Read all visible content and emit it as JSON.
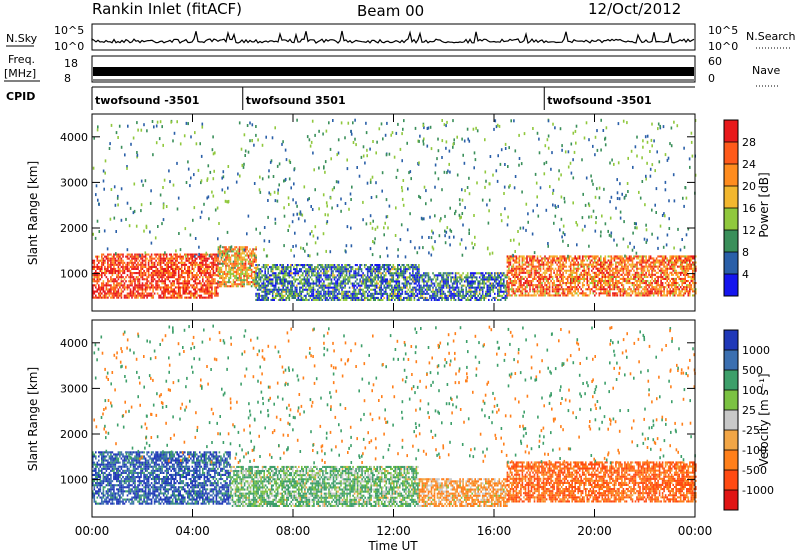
{
  "header": {
    "title": "Rankin Inlet (fitACF)",
    "beam": "Beam 00",
    "date": "12/Oct/2012"
  },
  "strips": {
    "nsky_label": "N.Sky",
    "nsky_ticks": [
      "10^5",
      "10^0"
    ],
    "nsearch_label": "N.Search",
    "nsearch_ticks": [
      "10^5",
      "10^0"
    ],
    "freq_label_line1": "Freq.",
    "freq_label_line2": "[MHz]",
    "freq_ticks": [
      "18",
      "8"
    ],
    "nave_label": "Nave",
    "nave_ticks": [
      "60",
      "0"
    ],
    "cpid_label": "CPID",
    "cpid_segments": [
      {
        "start_hour": 0,
        "label": "twofsound -3501"
      },
      {
        "start_hour": 6,
        "label": "twofsound 3501"
      },
      {
        "start_hour": 18,
        "label": "twofsound -3501"
      }
    ]
  },
  "chart_data": [
    {
      "type": "heatmap",
      "name": "power",
      "ylabel": "Slant Range [km]",
      "ylim": [
        180,
        4500
      ],
      "yticks": [
        "1000",
        "2000",
        "3000",
        "4000"
      ],
      "xlim_hours": [
        0,
        24
      ],
      "colorbar_label": "Power [dB]",
      "colorbar_ticks": [
        "28",
        "24",
        "20",
        "16",
        "12",
        "8",
        "4"
      ],
      "colorbar_colors": [
        "#e8191b",
        "#ff5a1a",
        "#ff8c1e",
        "#f2b72f",
        "#90c83d",
        "#3a8f5a",
        "#2a5fa8",
        "#1515ee"
      ],
      "range_bands": [
        {
          "from_hour": 0.0,
          "to_hour": 5.0,
          "range_min_km": 450,
          "range_max_km": 1400,
          "dominant_db": 28
        },
        {
          "from_hour": 5.0,
          "to_hour": 6.5,
          "range_min_km": 700,
          "range_max_km": 1600,
          "dominant_db": 20
        },
        {
          "from_hour": 6.5,
          "to_hour": 13.0,
          "range_min_km": 400,
          "range_max_km": 1200,
          "dominant_db": 8
        },
        {
          "from_hour": 13.0,
          "to_hour": 16.5,
          "range_min_km": 400,
          "range_max_km": 1000,
          "dominant_db": 8
        },
        {
          "from_hour": 16.5,
          "to_hour": 24.0,
          "range_min_km": 500,
          "range_max_km": 1400,
          "dominant_db": 24
        }
      ]
    },
    {
      "type": "heatmap",
      "name": "velocity",
      "ylabel": "Slant Range [km]",
      "xlabel": "Time UT",
      "ylim": [
        180,
        4500
      ],
      "yticks": [
        "1000",
        "2000",
        "3000",
        "4000"
      ],
      "xticks": [
        "00:00",
        "04:00",
        "08:00",
        "12:00",
        "16:00",
        "20:00",
        "00:00"
      ],
      "xlim_hours": [
        0,
        24
      ],
      "colorbar_label": "Velocity [m s⁻¹]",
      "colorbar_ticks": [
        "1000",
        "500",
        "100",
        "25",
        "-25",
        "-100",
        "-500",
        "-1000"
      ],
      "colorbar_colors": [
        "#2038b8",
        "#3b6fb0",
        "#3d9f6a",
        "#7bc242",
        "#c8c8c8",
        "#f2a646",
        "#ff7f1a",
        "#ff4a12",
        "#e01414"
      ],
      "range_bands": [
        {
          "from_hour": 0.0,
          "to_hour": 5.5,
          "range_min_km": 450,
          "range_max_km": 1600,
          "dominant_mps": 1000
        },
        {
          "from_hour": 5.5,
          "to_hour": 13.0,
          "range_min_km": 400,
          "range_max_km": 1300,
          "dominant_mps": 100
        },
        {
          "from_hour": 13.0,
          "to_hour": 16.5,
          "range_min_km": 400,
          "range_max_km": 1000,
          "dominant_mps": -100
        },
        {
          "from_hour": 16.5,
          "to_hour": 24.0,
          "range_min_km": 500,
          "range_max_km": 1400,
          "dominant_mps": -500
        }
      ]
    }
  ]
}
